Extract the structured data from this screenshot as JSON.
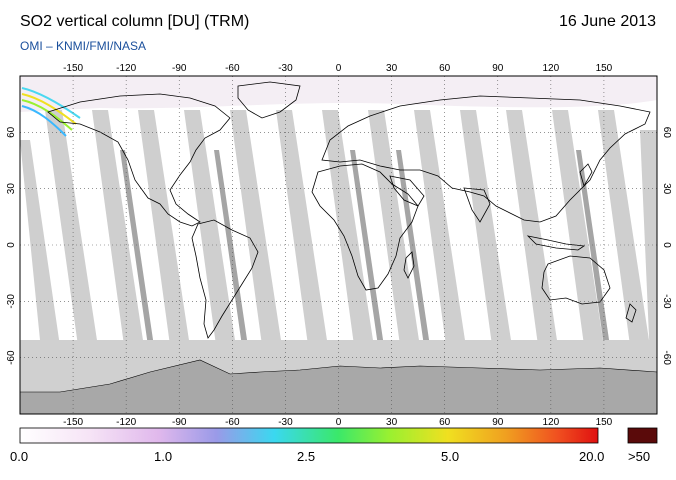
{
  "header": {
    "title": "SO2 vertical column [DU] (TRM)",
    "date": "16 June 2013",
    "credit": "OMI  –  KNMI/FMI/NASA"
  },
  "map": {
    "lon_ticks": [
      "-150",
      "-120",
      "-90",
      "-60",
      "-30",
      "0",
      "30",
      "60",
      "90",
      "120",
      "150"
    ],
    "lat_ticks": [
      "60",
      "30",
      "0",
      "-30",
      "-60"
    ],
    "lon_range": [
      -180,
      180
    ],
    "lat_range": [
      -90,
      90
    ],
    "projection": "equirectangular",
    "gridlines": "dotted"
  },
  "colorbar": {
    "labels": [
      "0.0",
      "1.0",
      "2.5",
      "5.0",
      "20.0",
      ">50"
    ],
    "colors": [
      "#ffffff",
      "#f4d8f4",
      "#d8a8e8",
      "#8a8ae8",
      "#3ad8f0",
      "#3ae86a",
      "#9af030",
      "#f0e020",
      "#f0a020",
      "#f05020",
      "#e01010"
    ],
    "overflow_color": "#5a0a0a"
  },
  "swath_color": "#c8c8c8",
  "ice_color": "#a8a8a8"
}
